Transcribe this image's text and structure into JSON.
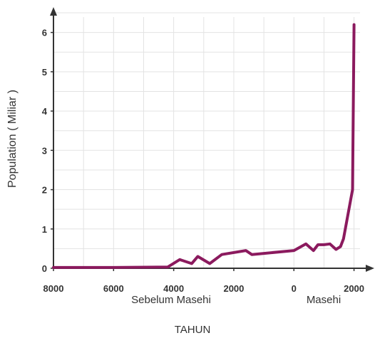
{
  "chart_data": {
    "type": "line",
    "ylabel": "Population ( Miliar )",
    "xlabel": "TAHUN",
    "era_labels": [
      "Sebelum Masehi",
      "Masehi"
    ],
    "xlim": [
      -8000,
      2200
    ],
    "ylim": [
      0,
      6.5
    ],
    "grid": true,
    "x_ticks": [
      {
        "value": -8000,
        "label": "8000"
      },
      {
        "value": -6000,
        "label": "6000"
      },
      {
        "value": -4000,
        "label": "4000"
      },
      {
        "value": -2000,
        "label": "2000"
      },
      {
        "value": 0,
        "label": "0"
      },
      {
        "value": 2000,
        "label": "2000"
      }
    ],
    "y_ticks": [
      {
        "value": 0,
        "label": "0"
      },
      {
        "value": 1,
        "label": "1"
      },
      {
        "value": 2,
        "label": "2"
      },
      {
        "value": 3,
        "label": "3"
      },
      {
        "value": 4,
        "label": "4"
      },
      {
        "value": 5,
        "label": "5"
      },
      {
        "value": 6,
        "label": "6"
      }
    ],
    "line_color": "#8b1a5e",
    "series": [
      {
        "x": [
          -8000,
          -6000,
          -4200,
          -3800,
          -3400,
          -3200,
          -2800,
          -2400,
          -1600,
          -1400,
          0,
          400,
          650,
          800,
          1000,
          1200,
          1400,
          1550,
          1650,
          1950,
          2000
        ],
        "y": [
          0.02,
          0.02,
          0.03,
          0.22,
          0.12,
          0.3,
          0.12,
          0.35,
          0.45,
          0.35,
          0.45,
          0.62,
          0.45,
          0.6,
          0.6,
          0.62,
          0.48,
          0.55,
          0.75,
          2.0,
          6.2
        ]
      }
    ]
  }
}
